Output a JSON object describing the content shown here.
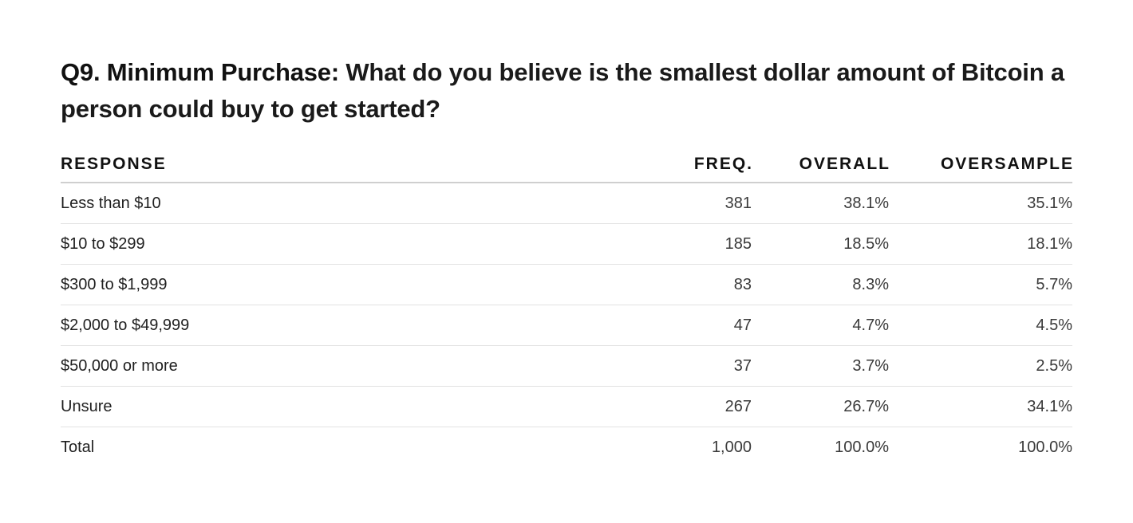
{
  "title": {
    "lead": "Q9. Minimum Purchase:",
    "question": "What do you believe is the smallest dollar amount of Bitcoin a person could buy to get started?"
  },
  "chart_data": {
    "type": "table",
    "columns": [
      "RESPONSE",
      "FREQ.",
      "OVERALL",
      "OVERSAMPLE"
    ],
    "rows": [
      [
        "Less than $10",
        "381",
        "38.1%",
        "35.1%"
      ],
      [
        "$10 to $299",
        "185",
        "18.5%",
        "18.1%"
      ],
      [
        "$300 to $1,999",
        "83",
        "8.3%",
        "5.7%"
      ],
      [
        "$2,000 to $49,999",
        "47",
        "4.7%",
        "4.5%"
      ],
      [
        "$50,000 or more",
        "37",
        "3.7%",
        "2.5%"
      ],
      [
        "Unsure",
        "267",
        "26.7%",
        "34.1%"
      ],
      [
        "Total",
        "1,000",
        "100.0%",
        "100.0%"
      ]
    ]
  }
}
